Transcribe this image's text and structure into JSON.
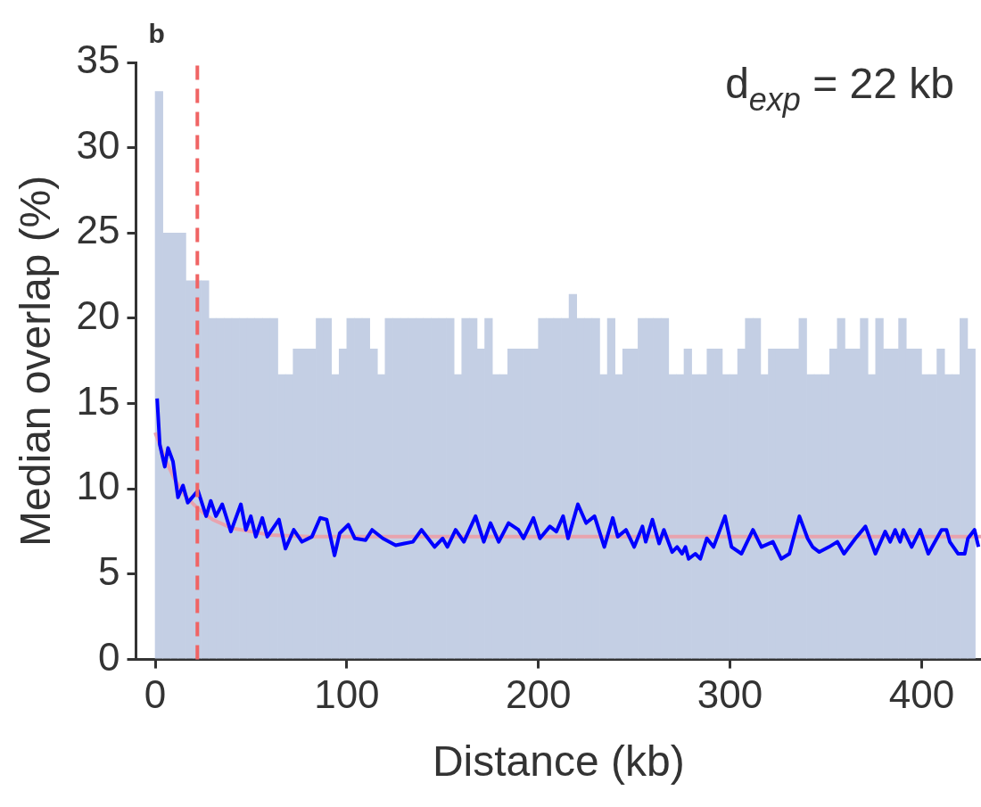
{
  "chart_data": {
    "type": "line",
    "xlabel": "Distance (kb)",
    "ylabel": "Median overlap (%)",
    "annotations": [
      "b",
      "d$_{exp}$ = 22 kb"
    ],
    "xlim": [
      -10,
      431
    ],
    "xticks": [
      0,
      100,
      200,
      300,
      400
    ],
    "ylim": [
      0,
      35
    ],
    "yticks": [
      0,
      5,
      10,
      15,
      20,
      25,
      30,
      35
    ],
    "grid": false,
    "ref_lines": [
      {
        "axis": "x",
        "value": 22,
        "color": "#f06464",
        "line_style": "dashed"
      }
    ],
    "series": [
      {
        "type": "bar",
        "color": "#c4cfe4",
        "x": [
          2,
          6,
          10,
          14,
          18,
          22,
          26,
          30,
          34,
          38,
          42,
          46,
          50,
          54,
          58,
          62,
          66,
          70,
          74,
          78,
          82,
          86,
          90,
          94,
          98,
          102,
          106,
          110,
          114,
          118,
          122,
          126,
          130,
          134,
          138,
          142,
          146,
          150,
          154,
          158,
          162,
          166,
          170,
          174,
          178,
          182,
          186,
          190,
          194,
          198,
          202,
          206,
          210,
          214,
          218,
          222,
          226,
          230,
          234,
          238,
          242,
          246,
          250,
          254,
          258,
          262,
          266,
          270,
          274,
          278,
          282,
          286,
          290,
          294,
          298,
          302,
          306,
          310,
          314,
          318,
          322,
          326,
          330,
          334,
          338,
          342,
          346,
          350,
          354,
          358,
          362,
          366,
          370,
          374,
          378,
          382,
          386,
          390,
          394,
          398,
          402,
          406,
          410,
          414,
          418,
          422,
          426
        ],
        "values": [
          33.3,
          25,
          25,
          25,
          22.2,
          22.2,
          22.2,
          20,
          20,
          20,
          20,
          20,
          20,
          20,
          20,
          20,
          16.7,
          16.7,
          18.2,
          18.2,
          18.2,
          20,
          20,
          16.7,
          18.2,
          20,
          20,
          20,
          18.2,
          16.7,
          20,
          20,
          20,
          20,
          20,
          20,
          20,
          20,
          20,
          16.7,
          20,
          20,
          18.2,
          20,
          16.7,
          16.7,
          18.2,
          18.2,
          18.2,
          18.2,
          20,
          20,
          20,
          20,
          21.4,
          20,
          20,
          20,
          16.7,
          20,
          16.7,
          18.2,
          18.2,
          20,
          20,
          20,
          20,
          16.7,
          16.7,
          18.2,
          16.7,
          16.7,
          18.2,
          18.2,
          16.7,
          16.7,
          18.2,
          20,
          20,
          16.7,
          18.2,
          18.2,
          18.2,
          18.2,
          20,
          16.7,
          16.7,
          16.7,
          18.2,
          20,
          18.2,
          18.2,
          20,
          16.7,
          20,
          18.2,
          18.2,
          20,
          18.2,
          18.2,
          16.7,
          16.7,
          18.2,
          16.7,
          16.7,
          20,
          18.2
        ]
      },
      {
        "type": "line",
        "color": "#e8a3ae",
        "x": [
          0,
          5,
          10,
          15,
          20,
          25,
          30,
          40,
          50,
          60,
          80,
          100,
          200,
          300,
          431
        ],
        "values": [
          13.3,
          11.8,
          10.6,
          9.7,
          9.1,
          8.6,
          8.2,
          7.7,
          7.5,
          7.3,
          7.2,
          7.2,
          7.2,
          7.2,
          7.2
        ]
      },
      {
        "color": "#0000ff",
        "x": [
          1,
          2.4,
          5,
          6.7,
          9.3,
          11.9,
          14.5,
          17,
          22.3,
          26.6,
          29,
          31.7,
          35,
          39.5,
          44.7,
          47.3,
          49.9,
          52.5,
          55.9,
          58.5,
          64.6,
          68,
          72.3,
          76.6,
          81.8,
          86.1,
          89.5,
          93.6,
          96.3,
          100.8,
          104.2,
          109.8,
          113.2,
          118.8,
          125.5,
          130,
          134.5,
          139,
          145.8,
          150,
          152.5,
          156.8,
          161.1,
          167.2,
          171.5,
          175,
          179.3,
          184.4,
          189.6,
          192.2,
          197.4,
          200.8,
          206,
          209.4,
          212.9,
          215.5,
          220.6,
          224.9,
          229.3,
          234.4,
          238.8,
          241.4,
          245.7,
          250,
          254.3,
          256,
          259.5,
          263,
          265.5,
          269.8,
          272.4,
          275,
          276.7,
          278.4,
          281.9,
          284.5,
          287.9,
          291.4,
          297.4,
          300.8,
          306,
          312,
          316.4,
          322.4,
          326.7,
          331,
          336.2,
          340.5,
          343.1,
          346.6,
          351.7,
          356,
          359.5,
          365.5,
          370.7,
          375.9,
          381,
          383.6,
          386.2,
          388.8,
          390.5,
          394.8,
          399.2,
          403.5,
          410.4,
          413,
          414.7,
          419,
          422.5,
          424.2,
          427.6,
          429.7
        ],
        "values": [
          15.3,
          12.6,
          11.3,
          12.4,
          11.6,
          9.5,
          10.2,
          9.2,
          9.9,
          8.4,
          9.3,
          8.4,
          9.1,
          7.5,
          9.1,
          7.6,
          8.4,
          7.2,
          8.3,
          7.2,
          8.2,
          6.5,
          7.6,
          6.9,
          7.2,
          8.3,
          8.2,
          6.1,
          7.4,
          7.9,
          7.1,
          7.0,
          7.6,
          7.1,
          6.7,
          6.8,
          6.9,
          7.6,
          6.6,
          7.1,
          6.6,
          7.6,
          6.9,
          8.4,
          6.9,
          8.0,
          6.9,
          8.0,
          7.6,
          7.1,
          8.3,
          7.1,
          7.8,
          7.5,
          8.4,
          7.1,
          9.1,
          8.0,
          8.4,
          6.6,
          8.3,
          7.2,
          7.6,
          6.6,
          7.8,
          6.9,
          8.2,
          6.8,
          7.6,
          6.3,
          6.6,
          6.2,
          6.6,
          5.9,
          6.2,
          5.9,
          7.1,
          6.6,
          8.4,
          6.6,
          6.2,
          7.6,
          6.6,
          6.9,
          5.9,
          6.2,
          8.4,
          7.1,
          6.6,
          6.3,
          6.6,
          6.9,
          6.2,
          7.1,
          7.8,
          6.2,
          7.5,
          6.9,
          7.6,
          6.9,
          7.6,
          6.6,
          7.6,
          6.2,
          7.6,
          7.6,
          6.9,
          6.2,
          6.2,
          7.1,
          7.6,
          6.6
        ]
      }
    ]
  }
}
